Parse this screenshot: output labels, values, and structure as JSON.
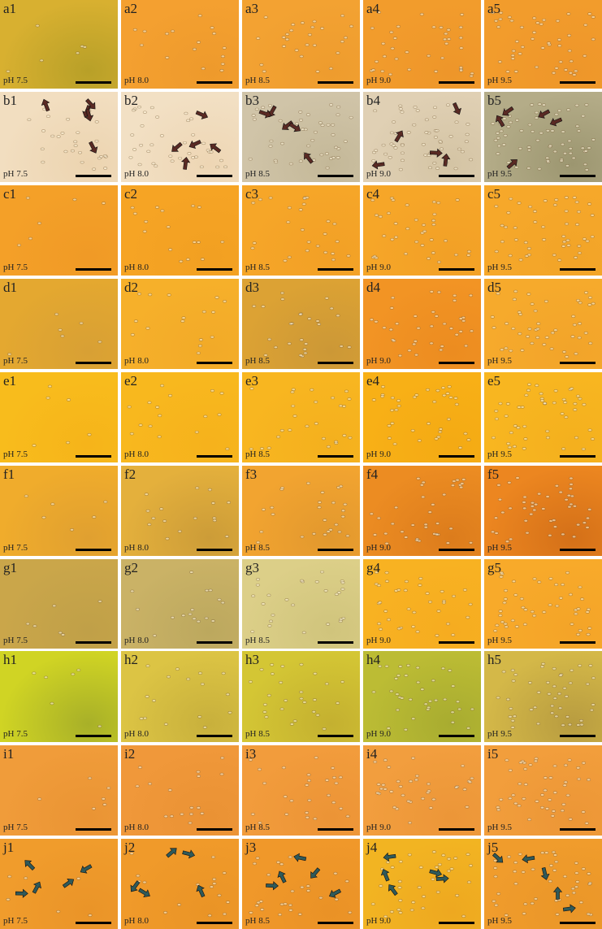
{
  "panels": [
    [
      {
        "label": "a1",
        "ph": "pH 7.5"
      },
      {
        "label": "a2",
        "ph": "pH 8.0"
      },
      {
        "label": "a3",
        "ph": "pH 8.5"
      },
      {
        "label": "a4",
        "ph": "pH 9.0"
      },
      {
        "label": "a5",
        "ph": "pH 9.5"
      }
    ],
    [
      {
        "label": "b1",
        "ph": "pH 7.5"
      },
      {
        "label": "b2",
        "ph": "pH 8.0"
      },
      {
        "label": "b3",
        "ph": "pH 8.5"
      },
      {
        "label": "b4",
        "ph": "pH 9.0"
      },
      {
        "label": "b5",
        "ph": "pH 9.5"
      }
    ],
    [
      {
        "label": "c1",
        "ph": "pH 7.5"
      },
      {
        "label": "c2",
        "ph": "pH 8.0"
      },
      {
        "label": "c3",
        "ph": "pH 8.5"
      },
      {
        "label": "c4",
        "ph": "pH 9.0"
      },
      {
        "label": "c5",
        "ph": "pH 9.5"
      }
    ],
    [
      {
        "label": "d1",
        "ph": "pH 7.5"
      },
      {
        "label": "d2",
        "ph": "pH 8.0"
      },
      {
        "label": "d3",
        "ph": "pH 8.5"
      },
      {
        "label": "d4",
        "ph": "pH 9.0"
      },
      {
        "label": "d5",
        "ph": "pH 9.5"
      }
    ],
    [
      {
        "label": "e1",
        "ph": "pH 7.5"
      },
      {
        "label": "e2",
        "ph": "pH 8.0"
      },
      {
        "label": "e3",
        "ph": "pH 8.5"
      },
      {
        "label": "e4",
        "ph": "pH 9.0"
      },
      {
        "label": "e5",
        "ph": "pH 9.5"
      }
    ],
    [
      {
        "label": "f1",
        "ph": "pH 7.5"
      },
      {
        "label": "f2",
        "ph": "pH 8.0"
      },
      {
        "label": "f3",
        "ph": "pH 8.5"
      },
      {
        "label": "f4",
        "ph": "pH 9.0"
      },
      {
        "label": "f5",
        "ph": "pH 9.5"
      }
    ],
    [
      {
        "label": "g1",
        "ph": "pH 7.5"
      },
      {
        "label": "g2",
        "ph": "pH 8.0"
      },
      {
        "label": "g3",
        "ph": "pH 8.5"
      },
      {
        "label": "g4",
        "ph": "pH 9.0"
      },
      {
        "label": "g5",
        "ph": "pH 9.5"
      }
    ],
    [
      {
        "label": "h1",
        "ph": "pH 7.5"
      },
      {
        "label": "h2",
        "ph": "pH 8.0"
      },
      {
        "label": "h3",
        "ph": "pH 8.5"
      },
      {
        "label": "h4",
        "ph": "pH 9.0"
      },
      {
        "label": "h5",
        "ph": "pH 9.5"
      }
    ],
    [
      {
        "label": "i1",
        "ph": "pH 7.5"
      },
      {
        "label": "i2",
        "ph": "pH 8.0"
      },
      {
        "label": "i3",
        "ph": "pH 8.5"
      },
      {
        "label": "i4",
        "ph": "pH 9.0"
      },
      {
        "label": "i5",
        "ph": "pH 9.5"
      }
    ],
    [
      {
        "label": "j1",
        "ph": "pH 7.5"
      },
      {
        "label": "j2",
        "ph": "pH 8.0"
      },
      {
        "label": "j3",
        "ph": "pH 8.5"
      },
      {
        "label": "j4",
        "ph": "pH 9.0"
      },
      {
        "label": "j5",
        "ph": "pH 9.5"
      }
    ]
  ]
}
